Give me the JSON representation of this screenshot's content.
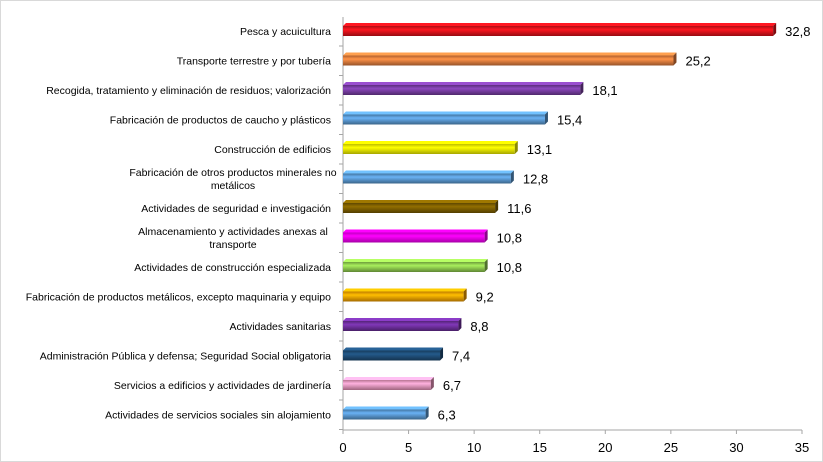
{
  "chart_data": {
    "type": "bar",
    "orientation": "horizontal",
    "categories": [
      "Pesca y acuicultura",
      "Transporte terrestre y por tubería",
      "Recogida, tratamiento y eliminación de residuos; valorización",
      "Fabricación de productos de caucho y plásticos",
      "Construcción de edificios",
      "Fabricación de otros productos minerales no metálicos",
      "Actividades de seguridad e investigación",
      "Almacenamiento y actividades anexas al transporte",
      "Actividades de construcción especializada",
      "Fabricación de productos metálicos, excepto maquinaria y equipo",
      "Actividades sanitarias",
      "Administración Pública y defensa; Seguridad Social obligatoria",
      "Servicios a edificios y actividades de jardinería",
      "Actividades de servicios sociales sin alojamiento"
    ],
    "category_lines": [
      [
        "Pesca y acuicultura"
      ],
      [
        "Transporte terrestre y por tubería"
      ],
      [
        "Recogida, tratamiento y eliminación de residuos; valorización"
      ],
      [
        "Fabricación de productos de caucho y plásticos"
      ],
      [
        "Construcción de edificios"
      ],
      [
        "Fabricación de otros productos minerales no",
        "metálicos"
      ],
      [
        "Actividades de seguridad e investigación"
      ],
      [
        "Almacenamiento y actividades anexas al",
        "transporte"
      ],
      [
        "Actividades de construcción especializada"
      ],
      [
        "Fabricación de productos metálicos, excepto maquinaria y equipo"
      ],
      [
        "Actividades sanitarias"
      ],
      [
        "Administración Pública y defensa; Seguridad Social obligatoria"
      ],
      [
        "Servicios a edificios y actividades de jardinería"
      ],
      [
        "Actividades de servicios sociales sin alojamiento"
      ]
    ],
    "values": [
      32.8,
      25.2,
      18.1,
      15.4,
      13.1,
      12.8,
      11.6,
      10.8,
      10.8,
      9.2,
      8.8,
      7.4,
      6.7,
      6.3
    ],
    "value_labels": [
      "32,8",
      "25,2",
      "18,1",
      "15,4",
      "13,1",
      "12,8",
      "11,6",
      "10,8",
      "10,8",
      "9,2",
      "8,8",
      "7,4",
      "6,7",
      "6,3"
    ],
    "bar_colors": [
      "#e8131b",
      "#e8803f",
      "#7b3fa6",
      "#5b9bd5",
      "#ffff00",
      "#5b9bd5",
      "#7f6000",
      "#ff00ff",
      "#92d050",
      "#ffa500",
      "#7030a0",
      "#1f4e79",
      "#f49ac2",
      "#5b9bd5"
    ],
    "xlim": [
      0,
      35
    ],
    "xticks": [
      0,
      5,
      10,
      15,
      20,
      25,
      30,
      35
    ],
    "xtick_labels": [
      "0",
      "5",
      "10",
      "15",
      "20",
      "25",
      "30",
      "35"
    ],
    "title": "",
    "xlabel": "",
    "ylabel": "",
    "grid": false,
    "legend": "none"
  }
}
